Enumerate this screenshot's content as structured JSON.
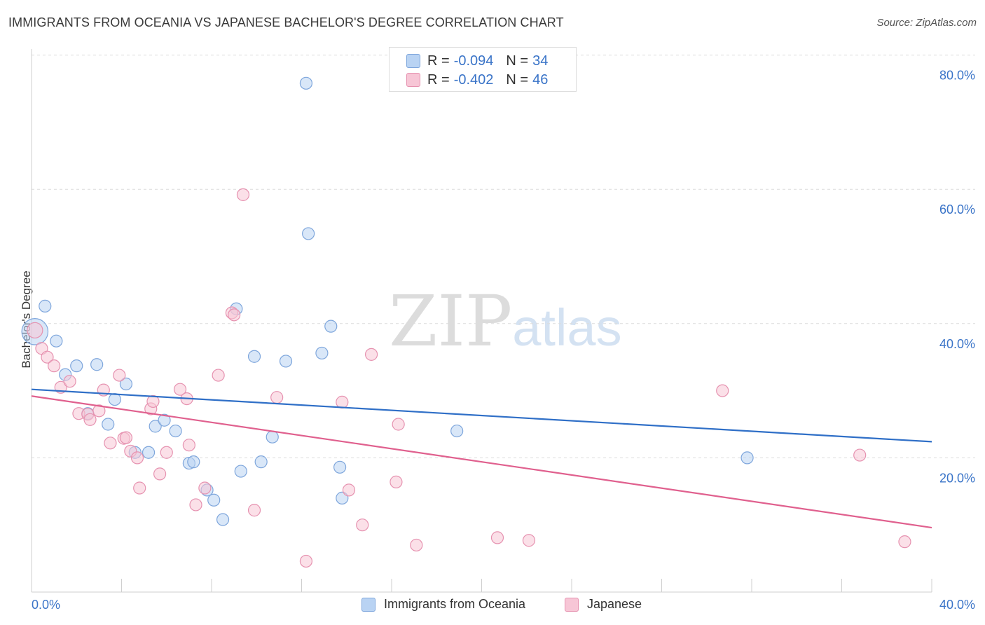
{
  "title": "IMMIGRANTS FROM OCEANIA VS JAPANESE BACHELOR'S DEGREE CORRELATION CHART",
  "source": "Source: ZipAtlas.com",
  "watermark": {
    "zip": "ZIP",
    "atlas": "atlas"
  },
  "legend": {
    "r_label": "R =",
    "n_label": "N =",
    "rows": [
      {
        "r": "-0.094",
        "n": "34"
      },
      {
        "r": "-0.402",
        "n": "46"
      }
    ],
    "bottom": [
      "Immigrants from Oceania",
      "Japanese"
    ]
  },
  "colors": {
    "blue_fill": "#b9d3f3",
    "blue_stroke": "#7ea6dc",
    "blue_line": "#2f6fc7",
    "pink_fill": "#f7c6d6",
    "pink_stroke": "#e692b0",
    "pink_line": "#e0608e",
    "tick_text": "#3a74c8",
    "grid": "#dcdcdc"
  },
  "chart_data": {
    "type": "scatter",
    "title": "IMMIGRANTS FROM OCEANIA VS JAPANESE BACHELOR'S DEGREE CORRELATION CHART",
    "xlabel": "",
    "ylabel": "Bachelor's Degree",
    "xlim": [
      0,
      40
    ],
    "ylim": [
      0,
      80
    ],
    "x_tick_labels": [
      "0.0%",
      "40.0%"
    ],
    "y_ticks": [
      20,
      40,
      60,
      80
    ],
    "y_tick_labels": [
      "20.0%",
      "40.0%",
      "60.0%",
      "80.0%"
    ],
    "grid": true,
    "legend_position": "top-center",
    "series": [
      {
        "name": "Immigrants from Oceania",
        "r": -0.094,
        "n": 34,
        "trend": {
          "x": [
            0,
            40
          ],
          "y": [
            30.2,
            22.4
          ]
        },
        "points": [
          [
            0.15,
            38.8,
            2.2
          ],
          [
            0.6,
            42.6,
            1
          ],
          [
            1.1,
            37.4,
            1
          ],
          [
            1.5,
            32.4,
            1
          ],
          [
            2.0,
            33.7,
            1
          ],
          [
            2.5,
            26.6,
            1
          ],
          [
            2.9,
            33.9,
            1
          ],
          [
            3.4,
            25.0,
            1
          ],
          [
            3.7,
            28.7,
            1
          ],
          [
            4.2,
            31.0,
            1
          ],
          [
            4.6,
            20.8,
            1
          ],
          [
            5.2,
            20.8,
            1
          ],
          [
            5.5,
            24.7,
            1
          ],
          [
            5.9,
            25.6,
            1
          ],
          [
            6.4,
            24.0,
            1
          ],
          [
            7.0,
            19.2,
            1
          ],
          [
            7.2,
            19.4,
            1
          ],
          [
            7.8,
            15.2,
            1
          ],
          [
            8.1,
            13.7,
            1
          ],
          [
            8.5,
            10.8,
            1
          ],
          [
            9.1,
            42.2,
            1
          ],
          [
            9.3,
            18.0,
            1
          ],
          [
            9.9,
            35.1,
            1
          ],
          [
            10.2,
            19.4,
            1
          ],
          [
            10.7,
            23.1,
            1
          ],
          [
            11.3,
            34.4,
            1
          ],
          [
            12.2,
            75.8,
            1
          ],
          [
            12.3,
            53.4,
            1
          ],
          [
            12.9,
            35.6,
            1
          ],
          [
            13.3,
            39.6,
            1
          ],
          [
            13.7,
            18.6,
            1
          ],
          [
            13.8,
            14.0,
            1
          ],
          [
            18.9,
            24.0,
            1
          ],
          [
            31.8,
            20.0,
            1
          ]
        ]
      },
      {
        "name": "Japanese",
        "r": -0.402,
        "n": 46,
        "trend": {
          "x": [
            0,
            40
          ],
          "y": [
            29.2,
            9.6
          ]
        },
        "points": [
          [
            0.15,
            39.0,
            1.3
          ],
          [
            0.45,
            36.3,
            1
          ],
          [
            0.7,
            35.0,
            1
          ],
          [
            1.0,
            33.7,
            1
          ],
          [
            1.3,
            30.5,
            1
          ],
          [
            1.7,
            31.4,
            1
          ],
          [
            2.1,
            26.6,
            1
          ],
          [
            2.5,
            26.5,
            1
          ],
          [
            2.6,
            25.7,
            1
          ],
          [
            3.0,
            27.0,
            1
          ],
          [
            3.2,
            30.1,
            1
          ],
          [
            3.5,
            22.2,
            1
          ],
          [
            3.9,
            32.3,
            1
          ],
          [
            4.1,
            22.9,
            1
          ],
          [
            4.4,
            21.0,
            1
          ],
          [
            4.7,
            20.0,
            1
          ],
          [
            4.8,
            15.5,
            1
          ],
          [
            5.3,
            27.3,
            1
          ],
          [
            5.4,
            28.4,
            1
          ],
          [
            5.7,
            17.6,
            1
          ],
          [
            6.0,
            20.8,
            1
          ],
          [
            6.6,
            30.2,
            1
          ],
          [
            6.9,
            28.8,
            1
          ],
          [
            7.0,
            21.9,
            1
          ],
          [
            7.3,
            13.0,
            1
          ],
          [
            7.7,
            15.5,
            1
          ],
          [
            8.3,
            32.3,
            1
          ],
          [
            8.9,
            41.6,
            1
          ],
          [
            9.0,
            41.3,
            1
          ],
          [
            9.4,
            59.2,
            1
          ],
          [
            9.9,
            12.2,
            1
          ],
          [
            10.9,
            29.0,
            1
          ],
          [
            12.2,
            4.6,
            1
          ],
          [
            13.8,
            28.3,
            1
          ],
          [
            14.1,
            15.2,
            1
          ],
          [
            14.7,
            10.0,
            1
          ],
          [
            15.1,
            35.4,
            1
          ],
          [
            16.2,
            16.4,
            1
          ],
          [
            16.3,
            25.0,
            1
          ],
          [
            17.1,
            7.0,
            1
          ],
          [
            20.7,
            8.1,
            1
          ],
          [
            22.1,
            7.7,
            1
          ],
          [
            30.7,
            30.0,
            1
          ],
          [
            36.8,
            20.4,
            1
          ],
          [
            38.8,
            7.5,
            1
          ],
          [
            4.2,
            23.0,
            1
          ]
        ]
      }
    ]
  }
}
